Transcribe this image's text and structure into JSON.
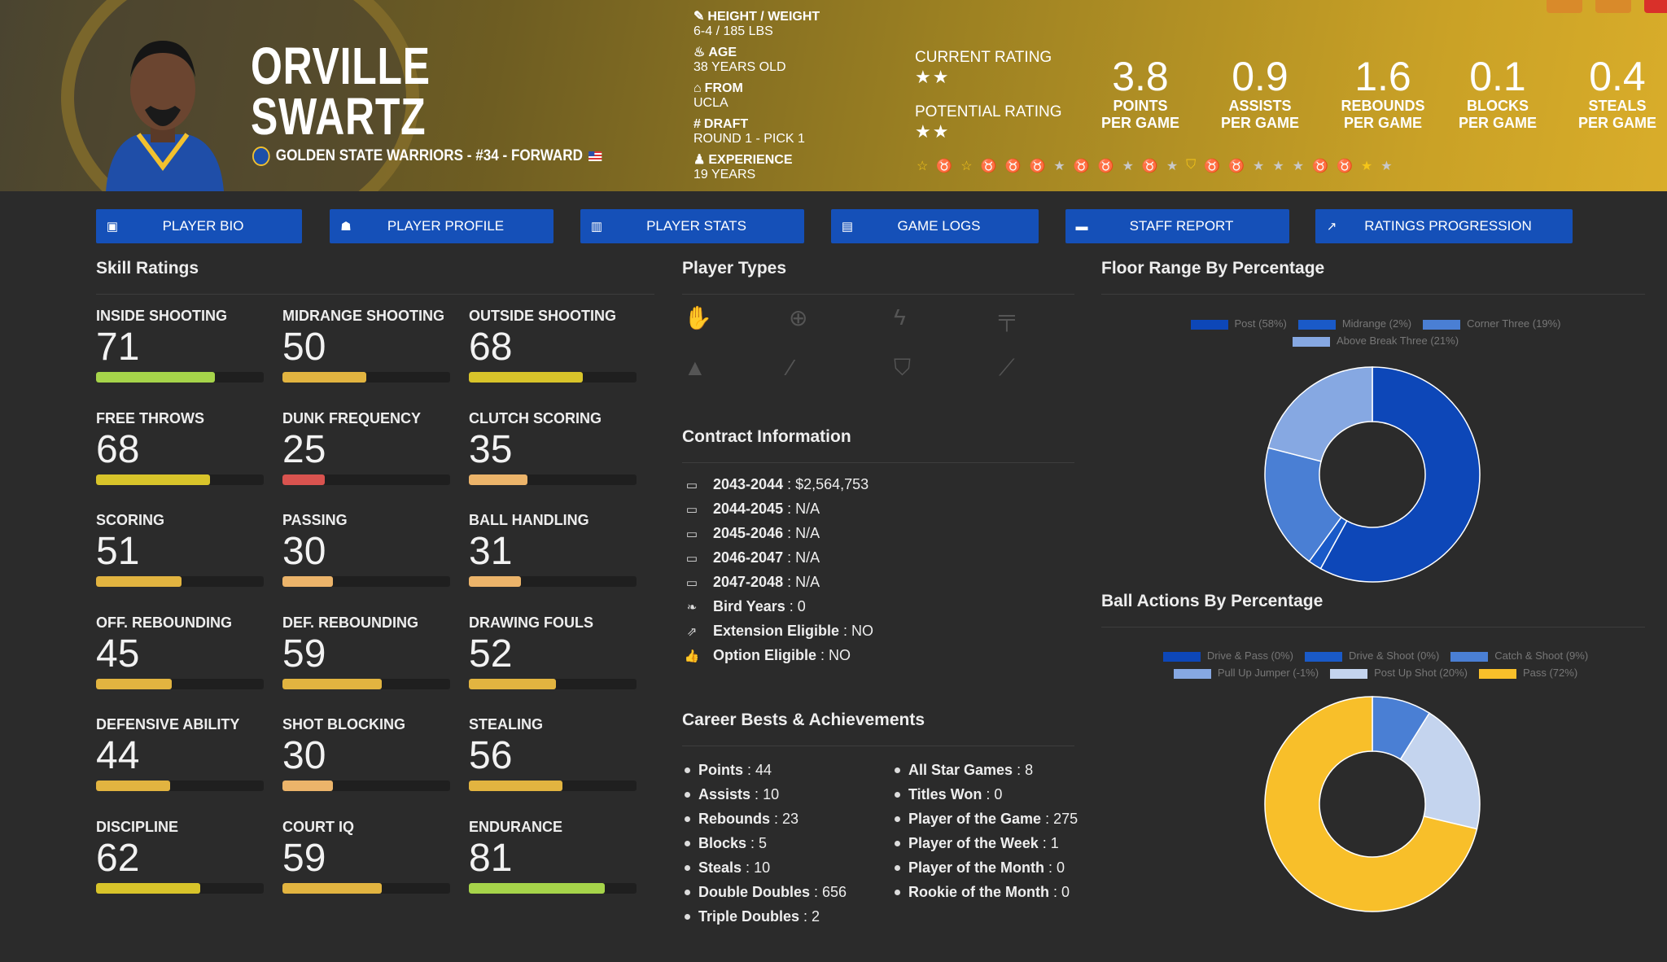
{
  "player": {
    "first_name": "ORVILLE",
    "last_name": "SWARTZ",
    "team_line": "GOLDEN STATE WARRIORS - #34 - FORWARD"
  },
  "bio": [
    {
      "icon": "ruler-icon",
      "label": "HEIGHT / WEIGHT",
      "value": "6-4 / 185 LBS"
    },
    {
      "icon": "cake-icon",
      "label": "AGE",
      "value": "38 YEARS OLD"
    },
    {
      "icon": "school-icon",
      "label": "FROM",
      "value": "UCLA"
    },
    {
      "icon": "hash-icon",
      "label": "DRAFT",
      "value": "ROUND 1 - PICK 1"
    },
    {
      "icon": "user-clock-icon",
      "label": "EXPERIENCE",
      "value": "19 YEARS"
    }
  ],
  "ratings": {
    "current_label": "CURRENT RATING",
    "current_stars": 2,
    "potential_label": "POTENTIAL RATING",
    "potential_stars": 2
  },
  "stats": [
    {
      "value": "3.8",
      "l1": "POINTS",
      "l2": "PER GAME"
    },
    {
      "value": "0.9",
      "l1": "ASSISTS",
      "l2": "PER GAME"
    },
    {
      "value": "1.6",
      "l1": "REBOUNDS",
      "l2": "PER GAME"
    },
    {
      "value": "0.1",
      "l1": "BLOCKS",
      "l2": "PER GAME"
    },
    {
      "value": "0.4",
      "l1": "STEALS",
      "l2": "PER GAME"
    }
  ],
  "badges": [
    "star-outline-gold",
    "medal-gold",
    "star-outline-gold",
    "medal-silver",
    "medal-silver",
    "medal-gold",
    "star-silver",
    "medal-bronze",
    "medal-gold",
    "star-silver",
    "medal-silver",
    "star-silver",
    "shield-gold",
    "medal-gold",
    "medal-gold",
    "star-silver",
    "star-silver",
    "star-silver",
    "medal-bronze",
    "medal-silver",
    "star-gold",
    "star-silver"
  ],
  "nav": [
    {
      "label": "PLAYER BIO",
      "icon": "id-card-icon"
    },
    {
      "label": "PLAYER PROFILE",
      "icon": "users-icon"
    },
    {
      "label": "PLAYER STATS",
      "icon": "bar-chart-icon"
    },
    {
      "label": "GAME LOGS",
      "icon": "clipboard-icon"
    },
    {
      "label": "STAFF REPORT",
      "icon": "comment-icon"
    },
    {
      "label": "RATINGS PROGRESSION",
      "icon": "line-chart-icon"
    }
  ],
  "skill_title": "Skill Ratings",
  "skills": [
    {
      "label": "INSIDE SHOOTING",
      "value": 71
    },
    {
      "label": "MIDRANGE SHOOTING",
      "value": 50
    },
    {
      "label": "OUTSIDE SHOOTING",
      "value": 68
    },
    {
      "label": "FREE THROWS",
      "value": 68
    },
    {
      "label": "DUNK FREQUENCY",
      "value": 25
    },
    {
      "label": "CLUTCH SCORING",
      "value": 35
    },
    {
      "label": "SCORING",
      "value": 51
    },
    {
      "label": "PASSING",
      "value": 30
    },
    {
      "label": "BALL HANDLING",
      "value": 31
    },
    {
      "label": "OFF. REBOUNDING",
      "value": 45
    },
    {
      "label": "DEF. REBOUNDING",
      "value": 59
    },
    {
      "label": "DRAWING FOULS",
      "value": 52
    },
    {
      "label": "DEFENSIVE ABILITY",
      "value": 44
    },
    {
      "label": "SHOT BLOCKING",
      "value": 30
    },
    {
      "label": "STEALING",
      "value": 56
    },
    {
      "label": "DISCIPLINE",
      "value": 62
    },
    {
      "label": "COURT IQ",
      "value": 59
    },
    {
      "label": "ENDURANCE",
      "value": 81
    }
  ],
  "player_types_title": "Player Types",
  "player_types": [
    "basketball-hand-icon",
    "crosshair-icon",
    "bolt-icon",
    "paint-roller-icon",
    "traffic-cone-icon",
    "magic-wand-icon",
    "shield-icon",
    "broom-icon"
  ],
  "contract_title": "Contract Information",
  "contract": [
    {
      "icon": "money-bill-icon",
      "label": "2043-2044",
      "value": "$2,564,753"
    },
    {
      "icon": "money-bill-icon",
      "label": "2044-2045",
      "value": "N/A"
    },
    {
      "icon": "money-bill-icon",
      "label": "2045-2046",
      "value": "N/A"
    },
    {
      "icon": "money-bill-icon",
      "label": "2046-2047",
      "value": "N/A"
    },
    {
      "icon": "money-bill-icon",
      "label": "2047-2048",
      "value": "N/A"
    },
    {
      "icon": "feather-icon",
      "label": "Bird Years",
      "value": "0"
    },
    {
      "icon": "external-edit-icon",
      "label": "Extension Eligible",
      "value": "NO"
    },
    {
      "icon": "thumbs-up-icon",
      "label": "Option Eligible",
      "value": "NO"
    }
  ],
  "career_title": "Career Bests & Achievements",
  "career_left": [
    {
      "label": "Points",
      "value": "44"
    },
    {
      "label": "Assists",
      "value": "10"
    },
    {
      "label": "Rebounds",
      "value": "23"
    },
    {
      "label": "Blocks",
      "value": "5"
    },
    {
      "label": "Steals",
      "value": "10"
    },
    {
      "label": "Double Doubles",
      "value": "656"
    },
    {
      "label": "Triple Doubles",
      "value": "2"
    }
  ],
  "career_right": [
    {
      "label": "All Star Games",
      "value": "8"
    },
    {
      "label": "Titles Won",
      "value": "0"
    },
    {
      "label": "Player of the Game",
      "value": "275"
    },
    {
      "label": "Player of the Week",
      "value": "1"
    },
    {
      "label": "Player of the Month",
      "value": "0"
    },
    {
      "label": "Rookie of the Month",
      "value": "0"
    }
  ],
  "chart_data": [
    {
      "type": "pie",
      "title": "Floor Range By Percentage",
      "legend": "top",
      "categories": [
        "Post (58%)",
        "Midrange (2%)",
        "Corner Three (19%)",
        "Above Break Three (21%)"
      ],
      "values": [
        58,
        2,
        19,
        21
      ],
      "colors": [
        "#0d47b8",
        "#1a5ac8",
        "#4a7fd4",
        "#86a8e2"
      ]
    },
    {
      "type": "pie",
      "title": "Ball Actions By Percentage",
      "legend": "top",
      "categories": [
        "Drive & Pass (0%)",
        "Drive & Shoot (0%)",
        "Catch & Shoot (9%)",
        "Pull Up Jumper (-1%)",
        "Post Up Shot (20%)",
        "Pass (72%)"
      ],
      "values": [
        0,
        0,
        9,
        -1,
        20,
        72
      ],
      "colors": [
        "#0d47b8",
        "#1a5ac8",
        "#4a7fd4",
        "#86a8e2",
        "#c4d4ee",
        "#f8bf2a"
      ]
    }
  ],
  "colors": {
    "nav": "#1550b8",
    "high": "#a6d44a",
    "mid_high": "#d8c42a",
    "mid": "#e2b440",
    "low": "#ecb46a",
    "very_low": "#d9534f"
  }
}
